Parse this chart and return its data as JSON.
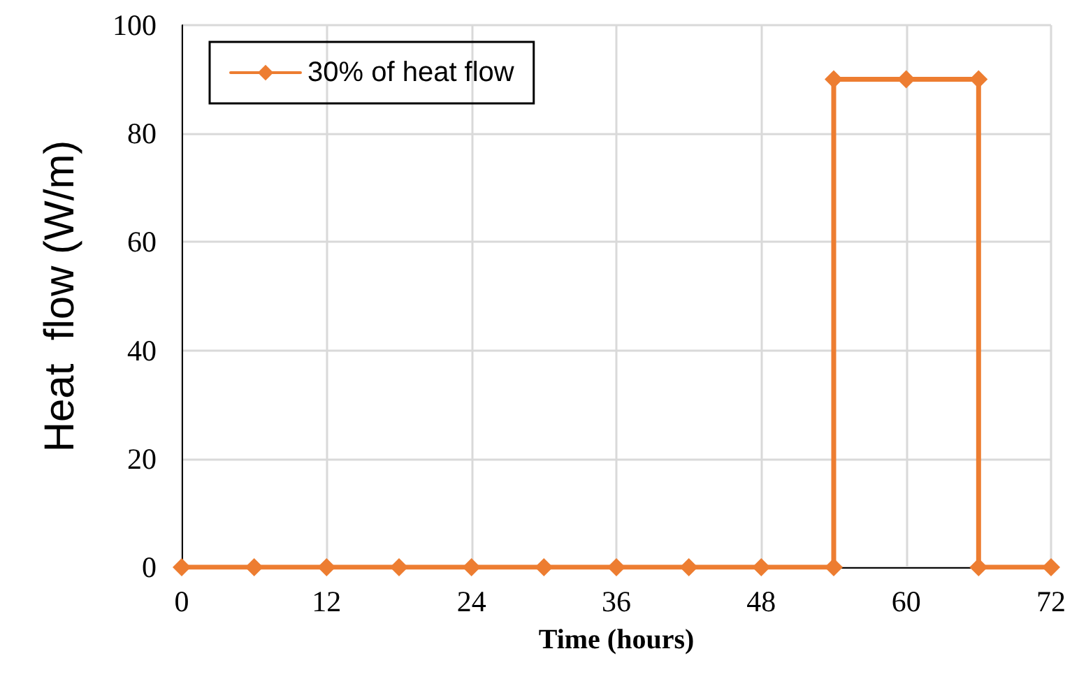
{
  "chart_data": {
    "type": "line",
    "xlabel": "Time (hours)",
    "ylabel": "Heat  flow (W/m)",
    "x": [
      0,
      6,
      12,
      18,
      24,
      30,
      36,
      42,
      48,
      54,
      54,
      60,
      66,
      66,
      72
    ],
    "series": [
      {
        "name": "30% of heat flow",
        "color": "#ed7d31",
        "values": [
          0,
          0,
          0,
          0,
          0,
          0,
          0,
          0,
          0,
          0,
          90,
          90,
          90,
          0,
          0
        ]
      }
    ],
    "xlim": [
      0,
      72
    ],
    "xticks": [
      0,
      12,
      24,
      36,
      48,
      60,
      72
    ],
    "ylim": [
      0,
      100
    ],
    "yticks": [
      0,
      20,
      40,
      60,
      80,
      100
    ],
    "grid": true,
    "legend": "top left",
    "marker": "diamond",
    "line_style": "solid"
  }
}
